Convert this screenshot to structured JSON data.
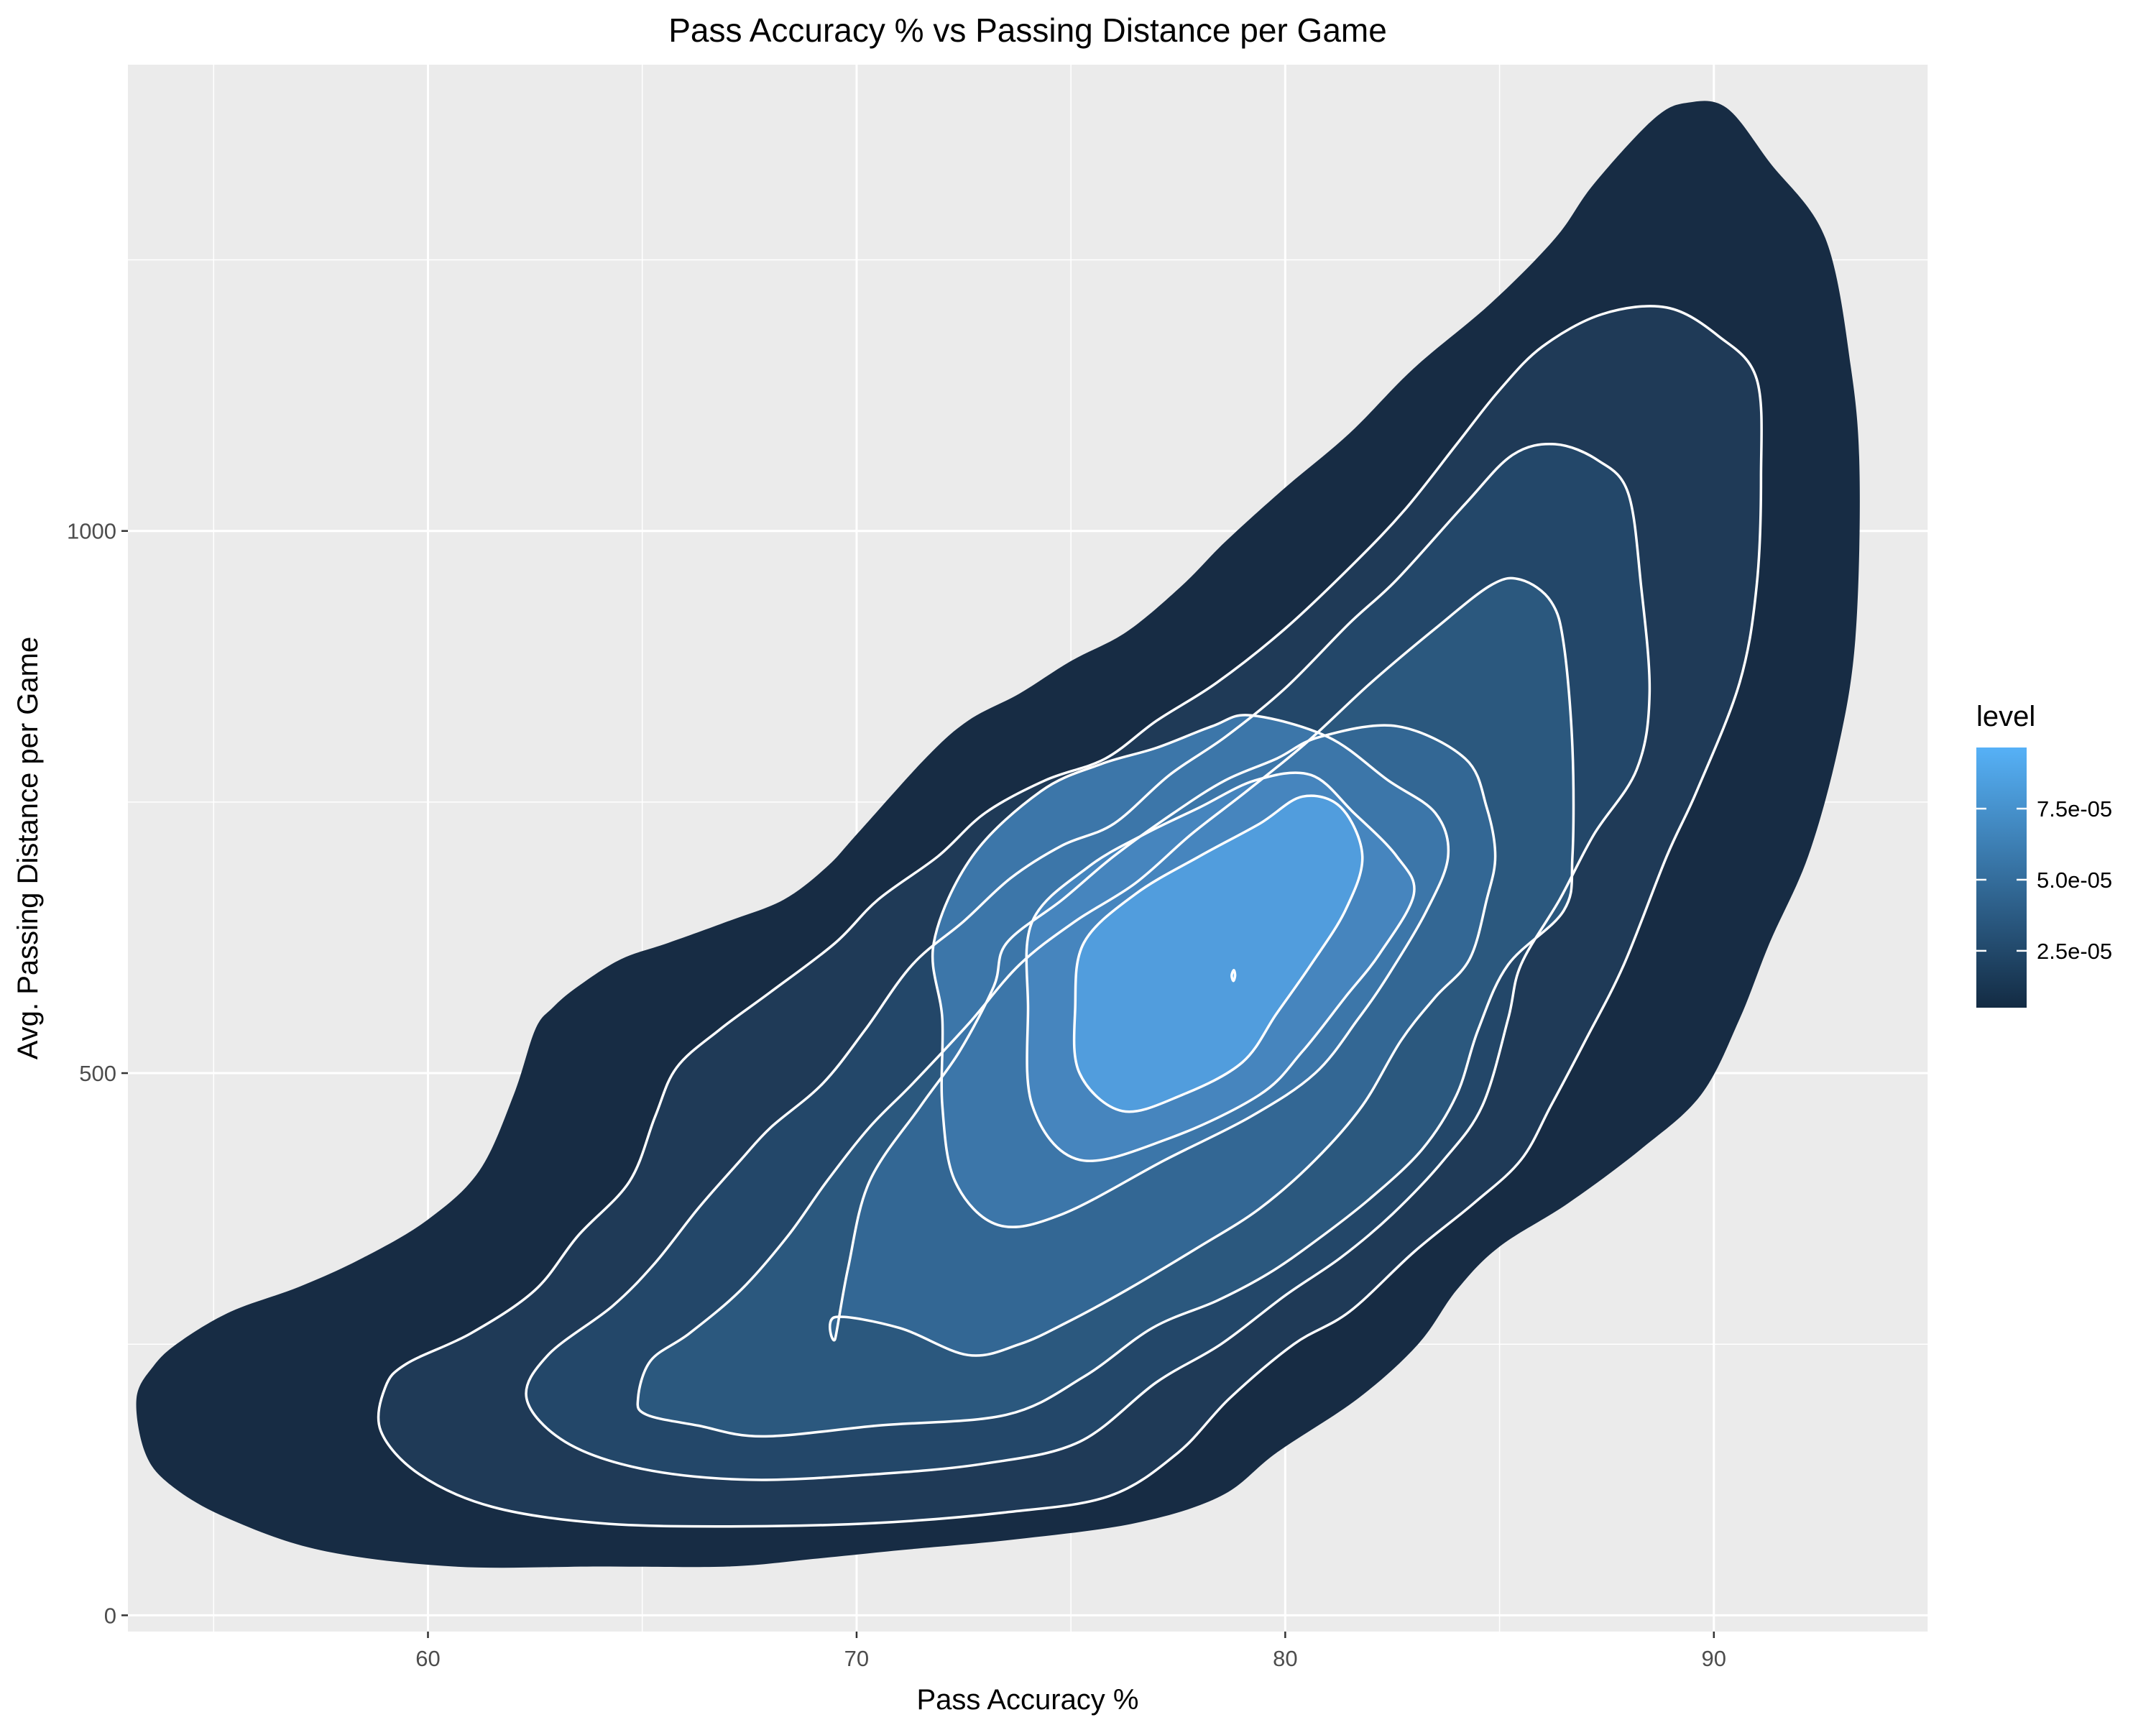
{
  "chart_data": {
    "type": "density_2d_filled",
    "title": "Pass Accuracy % vs Passing Distance per Game",
    "xlabel": "Pass Accuracy %",
    "ylabel": "Avg. Passing Distance per Game",
    "xlim": [
      53,
      95
    ],
    "ylim": [
      -15,
      1430
    ],
    "x_ticks": [
      60,
      70,
      80,
      90
    ],
    "x_tick_labels": [
      "60",
      "70",
      "80",
      "90"
    ],
    "x_minor_ticks": [
      55,
      65,
      75,
      85,
      95
    ],
    "y_ticks": [
      0,
      500,
      1000
    ],
    "y_tick_labels": [
      "0",
      "500",
      "1000"
    ],
    "y_minor_ticks": [
      250,
      750,
      1250
    ],
    "grid": true,
    "background": "#EBEBEB",
    "legend": {
      "title": "level",
      "position": "right",
      "range": [
        5e-06,
        9.65e-05
      ],
      "ticks": [
        2.5e-05,
        5e-05,
        7.5e-05
      ],
      "tick_labels": [
        "2.5e-05",
        "5.0e-05",
        "7.5e-05"
      ],
      "color_low": "#132B43",
      "color_high": "#56B1F7"
    },
    "density_peak": {
      "x": 78.8,
      "y": 590
    },
    "levels": [
      {
        "color": "#172C44",
        "points": [
          [
            53.2,
            200
          ],
          [
            53.6,
            230
          ],
          [
            54.2,
            252
          ],
          [
            55.4,
            280
          ],
          [
            57.0,
            303
          ],
          [
            58.5,
            330
          ],
          [
            60.0,
            365
          ],
          [
            61.2,
            410
          ],
          [
            62.0,
            480
          ],
          [
            62.5,
            540
          ],
          [
            62.9,
            560
          ],
          [
            63.5,
            580
          ],
          [
            64.5,
            605
          ],
          [
            65.6,
            620
          ],
          [
            67.0,
            640
          ],
          [
            68.3,
            660
          ],
          [
            69.3,
            690
          ],
          [
            70.0,
            720
          ],
          [
            71.6,
            790
          ],
          [
            72.6,
            825
          ],
          [
            73.8,
            850
          ],
          [
            75.0,
            880
          ],
          [
            76.3,
            907
          ],
          [
            77.6,
            950
          ],
          [
            78.6,
            990
          ],
          [
            80.0,
            1040
          ],
          [
            81.5,
            1090
          ],
          [
            83.0,
            1150
          ],
          [
            84.8,
            1210
          ],
          [
            86.3,
            1270
          ],
          [
            87.2,
            1320
          ],
          [
            88.6,
            1380
          ],
          [
            89.4,
            1395
          ],
          [
            90.3,
            1390
          ],
          [
            91.3,
            1340
          ],
          [
            92.6,
            1270
          ],
          [
            93.2,
            1150
          ],
          [
            93.4,
            1050
          ],
          [
            93.3,
            900
          ],
          [
            92.9,
            800
          ],
          [
            92.2,
            700
          ],
          [
            91.3,
            620
          ],
          [
            90.6,
            550
          ],
          [
            89.7,
            480
          ],
          [
            88.3,
            430
          ],
          [
            86.6,
            380
          ],
          [
            85.0,
            340
          ],
          [
            84.0,
            300
          ],
          [
            83.1,
            250
          ],
          [
            81.7,
            200
          ],
          [
            79.8,
            150
          ],
          [
            78.5,
            110
          ],
          [
            76.5,
            85
          ],
          [
            73.7,
            70
          ],
          [
            71.0,
            60
          ],
          [
            69.0,
            52
          ],
          [
            67.0,
            45
          ],
          [
            64.0,
            45
          ],
          [
            60.6,
            45
          ],
          [
            57.5,
            60
          ],
          [
            55.3,
            90
          ],
          [
            54.0,
            120
          ],
          [
            53.4,
            150
          ],
          [
            53.2,
            200
          ]
        ]
      },
      {
        "color": "#1F3A57",
        "points": [
          [
            59.0,
            210
          ],
          [
            59.5,
            232
          ],
          [
            61.0,
            260
          ],
          [
            62.5,
            300
          ],
          [
            63.5,
            350
          ],
          [
            64.7,
            400
          ],
          [
            65.3,
            460
          ],
          [
            65.8,
            505
          ],
          [
            66.8,
            540
          ],
          [
            68.0,
            575
          ],
          [
            69.5,
            620
          ],
          [
            70.5,
            660
          ],
          [
            71.9,
            700
          ],
          [
            73.0,
            740
          ],
          [
            74.4,
            770
          ],
          [
            75.8,
            790
          ],
          [
            77.0,
            825
          ],
          [
            78.4,
            860
          ],
          [
            80.0,
            910
          ],
          [
            81.6,
            970
          ],
          [
            82.8,
            1020
          ],
          [
            84.0,
            1080
          ],
          [
            85.0,
            1130
          ],
          [
            86.0,
            1170
          ],
          [
            87.4,
            1200
          ],
          [
            88.9,
            1206
          ],
          [
            90.1,
            1180
          ],
          [
            91.0,
            1140
          ],
          [
            91.1,
            1050
          ],
          [
            91.0,
            950
          ],
          [
            90.6,
            860
          ],
          [
            89.6,
            760
          ],
          [
            88.9,
            700
          ],
          [
            87.9,
            600
          ],
          [
            87.0,
            530
          ],
          [
            86.2,
            470
          ],
          [
            85.5,
            420
          ],
          [
            84.4,
            380
          ],
          [
            83.0,
            335
          ],
          [
            81.5,
            280
          ],
          [
            80.2,
            250
          ],
          [
            78.7,
            200
          ],
          [
            77.5,
            150
          ],
          [
            75.9,
            110
          ],
          [
            73.5,
            95
          ],
          [
            70.4,
            85
          ],
          [
            67.0,
            82
          ],
          [
            64.0,
            85
          ],
          [
            61.5,
            100
          ],
          [
            59.8,
            130
          ],
          [
            58.9,
            170
          ],
          [
            59.0,
            210
          ]
        ]
      },
      {
        "color": "#234769",
        "points": [
          [
            62.3,
            200
          ],
          [
            62.8,
            240
          ],
          [
            64.3,
            285
          ],
          [
            65.3,
            325
          ],
          [
            66.3,
            375
          ],
          [
            67.3,
            420
          ],
          [
            68.0,
            450
          ],
          [
            69.2,
            490
          ],
          [
            70.2,
            540
          ],
          [
            71.3,
            600
          ],
          [
            72.5,
            640
          ],
          [
            73.6,
            680
          ],
          [
            74.8,
            710
          ],
          [
            76.0,
            730
          ],
          [
            77.3,
            775
          ],
          [
            78.6,
            810
          ],
          [
            80.0,
            855
          ],
          [
            81.5,
            915
          ],
          [
            82.6,
            955
          ],
          [
            84.2,
            1025
          ],
          [
            85.3,
            1070
          ],
          [
            86.3,
            1080
          ],
          [
            87.3,
            1065
          ],
          [
            88.0,
            1035
          ],
          [
            88.3,
            950
          ],
          [
            88.5,
            850
          ],
          [
            88.2,
            780
          ],
          [
            87.2,
            720
          ],
          [
            86.4,
            660
          ],
          [
            85.5,
            600
          ],
          [
            85.2,
            550
          ],
          [
            84.6,
            470
          ],
          [
            83.7,
            420
          ],
          [
            82.5,
            370
          ],
          [
            81.3,
            330
          ],
          [
            80.0,
            295
          ],
          [
            78.5,
            250
          ],
          [
            77.0,
            215
          ],
          [
            75.2,
            160
          ],
          [
            73.0,
            140
          ],
          [
            70.4,
            130
          ],
          [
            67.5,
            125
          ],
          [
            65.0,
            135
          ],
          [
            63.2,
            160
          ],
          [
            62.3,
            200
          ]
        ]
      },
      {
        "color": "#2B587E",
        "points": [
          [
            64.9,
            200
          ],
          [
            65.2,
            235
          ],
          [
            66.1,
            260
          ],
          [
            67.3,
            300
          ],
          [
            68.4,
            350
          ],
          [
            69.3,
            400
          ],
          [
            70.3,
            450
          ],
          [
            71.3,
            490
          ],
          [
            72.6,
            545
          ],
          [
            73.8,
            600
          ],
          [
            75.1,
            640
          ],
          [
            76.5,
            675
          ],
          [
            77.8,
            720
          ],
          [
            79.1,
            760
          ],
          [
            80.5,
            805
          ],
          [
            82.0,
            860
          ],
          [
            83.5,
            910
          ],
          [
            84.8,
            950
          ],
          [
            85.5,
            955
          ],
          [
            86.2,
            935
          ],
          [
            86.5,
            895
          ],
          [
            86.7,
            800
          ],
          [
            86.7,
            700
          ],
          [
            86.5,
            650
          ],
          [
            85.2,
            600
          ],
          [
            84.5,
            540
          ],
          [
            84.0,
            480
          ],
          [
            83.2,
            430
          ],
          [
            82.0,
            385
          ],
          [
            80.7,
            345
          ],
          [
            79.6,
            315
          ],
          [
            78.4,
            290
          ],
          [
            76.9,
            265
          ],
          [
            75.3,
            220
          ],
          [
            73.5,
            185
          ],
          [
            70.5,
            175
          ],
          [
            67.8,
            165
          ],
          [
            66.3,
            175
          ],
          [
            65.1,
            185
          ],
          [
            64.9,
            200
          ]
        ]
      },
      {
        "color": "#336794",
        "points": [
          [
            69.5,
            255
          ],
          [
            69.8,
            320
          ],
          [
            70.3,
            400
          ],
          [
            71.5,
            470
          ],
          [
            72.4,
            520
          ],
          [
            73.2,
            580
          ],
          [
            73.5,
            620
          ],
          [
            74.8,
            660
          ],
          [
            76.0,
            700
          ],
          [
            77.4,
            740
          ],
          [
            78.6,
            770
          ],
          [
            79.8,
            790
          ],
          [
            80.8,
            810
          ],
          [
            82.6,
            820
          ],
          [
            84.2,
            790
          ],
          [
            84.7,
            745
          ],
          [
            84.9,
            700
          ],
          [
            84.7,
            660
          ],
          [
            84.3,
            605
          ],
          [
            83.5,
            570
          ],
          [
            82.7,
            530
          ],
          [
            81.8,
            470
          ],
          [
            80.7,
            420
          ],
          [
            79.4,
            375
          ],
          [
            78.0,
            340
          ],
          [
            76.3,
            300
          ],
          [
            74.9,
            270
          ],
          [
            73.8,
            250
          ],
          [
            72.6,
            240
          ],
          [
            71.0,
            265
          ],
          [
            69.5,
            275
          ],
          [
            69.5,
            255
          ]
        ]
      },
      {
        "color": "#3C76A9",
        "points": [
          [
            72.0,
            550
          ],
          [
            71.8,
            620
          ],
          [
            72.7,
            700
          ],
          [
            74.3,
            760
          ],
          [
            75.7,
            785
          ],
          [
            77.0,
            800
          ],
          [
            78.3,
            820
          ],
          [
            79.2,
            830
          ],
          [
            81.0,
            810
          ],
          [
            82.4,
            770
          ],
          [
            83.5,
            740
          ],
          [
            83.8,
            700
          ],
          [
            83.3,
            650
          ],
          [
            82.4,
            590
          ],
          [
            81.7,
            550
          ],
          [
            80.7,
            500
          ],
          [
            79.2,
            460
          ],
          [
            77.2,
            420
          ],
          [
            74.8,
            370
          ],
          [
            73.3,
            360
          ],
          [
            72.3,
            400
          ],
          [
            72.0,
            470
          ],
          [
            72.0,
            550
          ]
        ]
      },
      {
        "color": "#4685BE",
        "points": [
          [
            74.0,
            560
          ],
          [
            74.1,
            640
          ],
          [
            75.4,
            690
          ],
          [
            76.7,
            720
          ],
          [
            78.0,
            745
          ],
          [
            79.3,
            770
          ],
          [
            80.6,
            775
          ],
          [
            81.6,
            740
          ],
          [
            82.6,
            700
          ],
          [
            83.0,
            665
          ],
          [
            82.2,
            610
          ],
          [
            81.4,
            570
          ],
          [
            80.4,
            520
          ],
          [
            79.4,
            480
          ],
          [
            77.3,
            440
          ],
          [
            75.2,
            420
          ],
          [
            74.1,
            470
          ],
          [
            74.0,
            560
          ]
        ]
      },
      {
        "color": "#519DDD",
        "points": [
          [
            75.1,
            560
          ],
          [
            75.3,
            620
          ],
          [
            76.5,
            665
          ],
          [
            78.0,
            700
          ],
          [
            79.4,
            730
          ],
          [
            80.4,
            755
          ],
          [
            81.3,
            745
          ],
          [
            81.8,
            700
          ],
          [
            81.4,
            650
          ],
          [
            80.6,
            600
          ],
          [
            79.8,
            555
          ],
          [
            79.0,
            510
          ],
          [
            77.6,
            480
          ],
          [
            76.2,
            465
          ],
          [
            75.2,
            500
          ],
          [
            75.1,
            560
          ]
        ]
      },
      {
        "color": "#56B1F7",
        "points": [
          [
            78.79,
            585
          ],
          [
            78.83,
            590
          ],
          [
            78.8,
            595
          ],
          [
            78.75,
            590
          ]
        ]
      }
    ]
  }
}
